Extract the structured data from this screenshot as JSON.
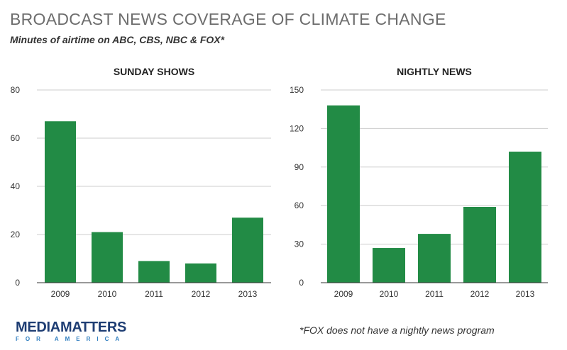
{
  "title": "BROADCAST NEWS COVERAGE OF CLIMATE CHANGE",
  "subtitle": "Minutes of airtime on ABC, CBS, NBC & FOX*",
  "footnote": "*FOX does not have a nightly news program",
  "logo": {
    "main_bold": "MEDIA",
    "main_rest": "MATTERS",
    "sub": "FOR AMERICA"
  },
  "colors": {
    "bar": "#228b45",
    "grid": "#cccccc",
    "axis": "#333333"
  },
  "chart_data": [
    {
      "type": "bar",
      "title": "SUNDAY SHOWS",
      "categories": [
        "2009",
        "2010",
        "2011",
        "2012",
        "2013"
      ],
      "values": [
        67,
        21,
        9,
        8,
        27
      ],
      "yticks": [
        0,
        20,
        40,
        60,
        80
      ],
      "ylim": [
        0,
        80
      ],
      "xlabel": "",
      "ylabel": ""
    },
    {
      "type": "bar",
      "title": "NIGHTLY NEWS",
      "categories": [
        "2009",
        "2010",
        "2011",
        "2012",
        "2013"
      ],
      "values": [
        138,
        27,
        38,
        59,
        102
      ],
      "yticks": [
        0,
        30,
        60,
        90,
        120,
        150
      ],
      "ylim": [
        0,
        150
      ],
      "xlabel": "",
      "ylabel": ""
    }
  ]
}
